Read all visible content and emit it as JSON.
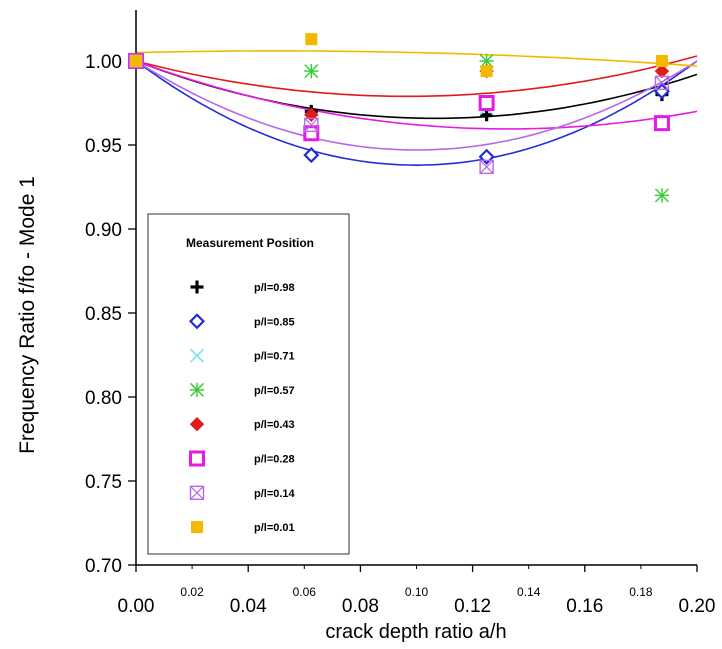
{
  "chart_data": {
    "type": "scatter",
    "title": "",
    "xlabel": "crack depth ratio a/h",
    "ylabel": "Frequency Ratio f/fo  - Mode 1",
    "xlim": [
      0.0,
      0.2
    ],
    "ylim": [
      0.7,
      1.03
    ],
    "x_ticks_major": [
      "0.00",
      "0.04",
      "0.08",
      "0.12",
      "0.16",
      "0.20"
    ],
    "x_ticks_minor": [
      "0.02",
      "0.06",
      "0.10",
      "0.14",
      "0.18"
    ],
    "y_ticks": [
      "0.70",
      "0.75",
      "0.80",
      "0.85",
      "0.90",
      "0.95",
      "1.00"
    ],
    "grid": false,
    "legend_title": "Measurement Position",
    "legend_position": "bottom-left",
    "series": [
      {
        "name": "p/l=0.98",
        "color": "#000000",
        "marker": "plus",
        "x": [
          0.0,
          0.0625,
          0.125,
          0.1875
        ],
        "y": [
          1.0,
          0.97,
          0.968,
          0.98
        ],
        "fit": [
          [
            0,
            1.0
          ],
          [
            0.1,
            0.966
          ],
          [
            0.2,
            0.992
          ]
        ]
      },
      {
        "name": "p/l=0.85",
        "color": "#1f2fd6",
        "marker": "diamond-open",
        "x": [
          0.0,
          0.0625,
          0.125,
          0.1875
        ],
        "y": [
          1.0,
          0.944,
          0.943,
          0.982
        ],
        "fit": [
          [
            0,
            1.0
          ],
          [
            0.1,
            0.938
          ],
          [
            0.2,
            1.0
          ]
        ]
      },
      {
        "name": "p/l=0.71",
        "color": "#7fe6f0",
        "marker": "x",
        "x": [
          0.0,
          0.125
        ],
        "y": [
          1.0,
          0.972
        ],
        "fit": []
      },
      {
        "name": "p/l=0.57",
        "color": "#33cc33",
        "marker": "asterisk",
        "x": [
          0.0,
          0.0625,
          0.125,
          0.1875
        ],
        "y": [
          1.0,
          0.994,
          1.0,
          0.92
        ],
        "fit": []
      },
      {
        "name": "p/l=0.43",
        "color": "#e01b1b",
        "marker": "diamond-filled",
        "x": [
          0.0,
          0.0625,
          0.125,
          0.1875
        ],
        "y": [
          1.0,
          0.968,
          0.994,
          0.994
        ],
        "fit": [
          [
            0,
            1.0
          ],
          [
            0.1,
            0.979
          ],
          [
            0.2,
            1.003
          ]
        ]
      },
      {
        "name": "p/l=0.28",
        "color": "#e619e6",
        "marker": "square-open",
        "x": [
          0.0,
          0.0625,
          0.125,
          0.1875
        ],
        "y": [
          1.0,
          0.957,
          0.975,
          0.963
        ],
        "fit": [
          [
            0,
            1.0
          ],
          [
            0.1,
            0.962
          ],
          [
            0.2,
            0.97
          ]
        ]
      },
      {
        "name": "p/l=0.14",
        "color": "#b768e6",
        "marker": "square-x",
        "x": [
          0.0,
          0.0625,
          0.125,
          0.1875
        ],
        "y": [
          1.0,
          0.962,
          0.937,
          0.987
        ],
        "fit": [
          [
            0,
            1.0
          ],
          [
            0.1,
            0.947
          ],
          [
            0.2,
            1.0
          ]
        ]
      },
      {
        "name": "p/l=0.01",
        "color": "#f5b800",
        "marker": "square-filled",
        "x": [
          0.0,
          0.0625,
          0.125,
          0.1875
        ],
        "y": [
          1.0,
          1.013,
          0.994,
          1.0
        ],
        "fit": [
          [
            0,
            1.005
          ],
          [
            0.1,
            1.005
          ],
          [
            0.2,
            0.997
          ]
        ]
      }
    ]
  }
}
